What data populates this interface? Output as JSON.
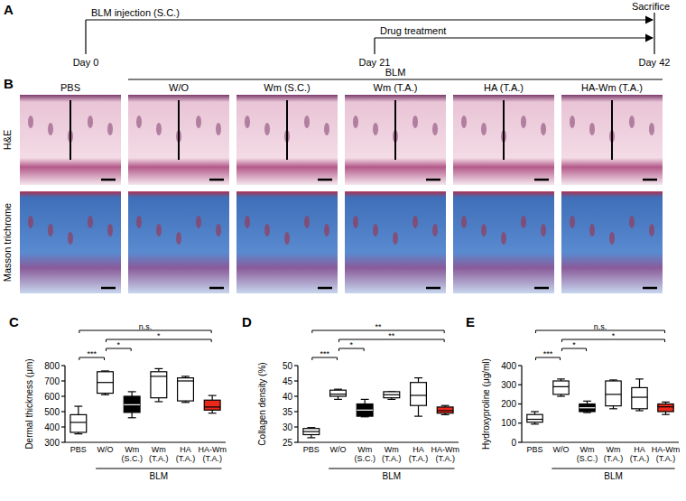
{
  "panel_a": {
    "letter": "A",
    "injection": "BLM injection (S.C.)",
    "treatment": "Drug treatment",
    "end": "Sacrifice",
    "days": [
      "Day 0",
      "Day 21",
      "Day 42"
    ]
  },
  "panel_b": {
    "letter": "B",
    "group_label": "BLM",
    "columns": [
      "PBS",
      "W/O",
      "Wm (S.C.)",
      "Wm (T.A.)",
      "HA (T.A.)",
      "HA-Wm (T.A.)"
    ],
    "rows": [
      "H&E",
      "Masson trichrome"
    ]
  },
  "chart_data": [
    {
      "type": "box",
      "letter": "C",
      "y_label": "Dermal thickness (μm)",
      "group_label": "BLM",
      "categories": [
        "PBS",
        "W/O",
        "Wm (S.C.)",
        "Wm (T.A.)",
        "HA (T.A.)",
        "HA-Wm (T.A.)"
      ],
      "boxes": {
        "min": [
          355,
          610,
          460,
          565,
          560,
          490
        ],
        "q1": [
          365,
          620,
          495,
          590,
          570,
          510
        ],
        "median": [
          430,
          690,
          545,
          730,
          700,
          530
        ],
        "q3": [
          480,
          760,
          600,
          760,
          720,
          575
        ],
        "max": [
          535,
          765,
          630,
          780,
          730,
          605
        ]
      },
      "colors": [
        "#ffffff",
        "#ffffff",
        "#000000",
        "#ffffff",
        "#ffffff",
        "#e8291c"
      ],
      "ylim": [
        300,
        800
      ],
      "yticks": [
        300,
        400,
        500,
        600,
        700,
        800
      ],
      "grid": false,
      "annotations": [
        {
          "text": "***",
          "between": [
            "PBS",
            "W/O"
          ]
        },
        {
          "text": "*",
          "between": [
            "W/O",
            "Wm (S.C.)"
          ]
        },
        {
          "text": "*",
          "between": [
            "W/O",
            "HA-Wm (T.A.)"
          ]
        },
        {
          "text": "n.s.",
          "between": [
            "PBS",
            "HA-Wm (T.A.)"
          ]
        }
      ]
    },
    {
      "type": "box",
      "letter": "D",
      "y_label": "Collagen density (%)",
      "group_label": "BLM",
      "categories": [
        "PBS",
        "W/O",
        "Wm (S.C.)",
        "Wm (T.A.)",
        "HA (T.A.)",
        "HA-Wm (T.A.)"
      ],
      "boxes": {
        "min": [
          26.5,
          39,
          33.3,
          39,
          33.5,
          34
        ],
        "q1": [
          27.5,
          40,
          33.5,
          39.5,
          37,
          34.5
        ],
        "median": [
          28.5,
          40.7,
          35.5,
          40.5,
          40.3,
          35.3
        ],
        "q3": [
          29.5,
          42,
          37.5,
          41.5,
          44.5,
          36.5
        ],
        "max": [
          29.8,
          42.3,
          39,
          41.5,
          46,
          37
        ]
      },
      "colors": [
        "#ffffff",
        "#ffffff",
        "#000000",
        "#ffffff",
        "#ffffff",
        "#e8291c"
      ],
      "ylim": [
        25,
        50
      ],
      "yticks": [
        25,
        30,
        35,
        40,
        45,
        50
      ],
      "grid": false,
      "annotations": [
        {
          "text": "***",
          "between": [
            "PBS",
            "W/O"
          ]
        },
        {
          "text": "*",
          "between": [
            "W/O",
            "Wm (S.C.)"
          ]
        },
        {
          "text": "**",
          "between": [
            "W/O",
            "HA-Wm (T.A.)"
          ]
        },
        {
          "text": "**",
          "between": [
            "PBS",
            "HA-Wm (T.A.)"
          ]
        }
      ]
    },
    {
      "type": "box",
      "letter": "E",
      "y_label": "Hydroxyproline (μg/ml)",
      "group_label": "BLM",
      "categories": [
        "PBS",
        "W/O",
        "Wm (S.C.)",
        "Wm (T.A.)",
        "HA (T.A.)",
        "HA-Wm (T.A.)"
      ],
      "boxes": {
        "min": [
          95,
          240,
          155,
          175,
          165,
          145
        ],
        "q1": [
          105,
          250,
          160,
          190,
          175,
          160
        ],
        "median": [
          120,
          290,
          180,
          250,
          235,
          185
        ],
        "q3": [
          145,
          320,
          200,
          320,
          285,
          200
        ],
        "max": [
          160,
          330,
          215,
          325,
          330,
          210
        ]
      },
      "colors": [
        "#ffffff",
        "#ffffff",
        "#000000",
        "#ffffff",
        "#ffffff",
        "#e8291c"
      ],
      "ylim": [
        0,
        400
      ],
      "yticks": [
        0,
        100,
        200,
        300,
        400
      ],
      "grid": false,
      "annotations": [
        {
          "text": "***",
          "between": [
            "PBS",
            "W/O"
          ]
        },
        {
          "text": "*",
          "between": [
            "W/O",
            "Wm (S.C.)"
          ]
        },
        {
          "text": "*",
          "between": [
            "W/O",
            "HA-Wm (T.A.)"
          ]
        },
        {
          "text": "n.s.",
          "between": [
            "PBS",
            "HA-Wm (T.A.)"
          ]
        }
      ]
    }
  ]
}
